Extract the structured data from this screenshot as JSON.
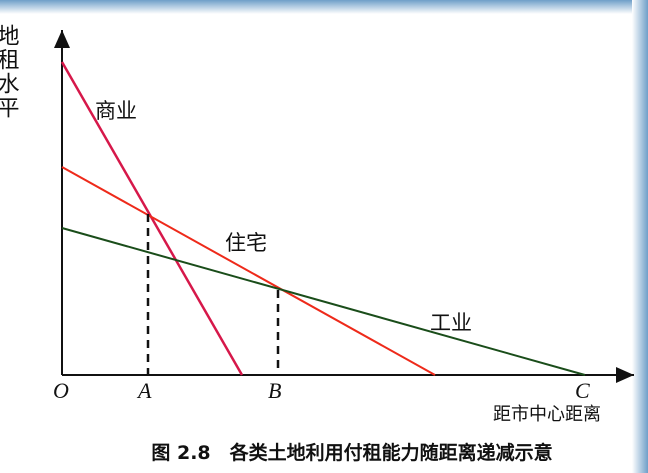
{
  "y_axis_label": "地租水平",
  "curves": [
    {
      "label": "商业"
    },
    {
      "label": "住宅"
    },
    {
      "label": "工业"
    }
  ],
  "points": [
    "O",
    "A",
    "B",
    "C"
  ],
  "x_axis_label": "距市中心距离",
  "caption": "图 2.8　各类土地利用付租能力随距离递减示意"
}
